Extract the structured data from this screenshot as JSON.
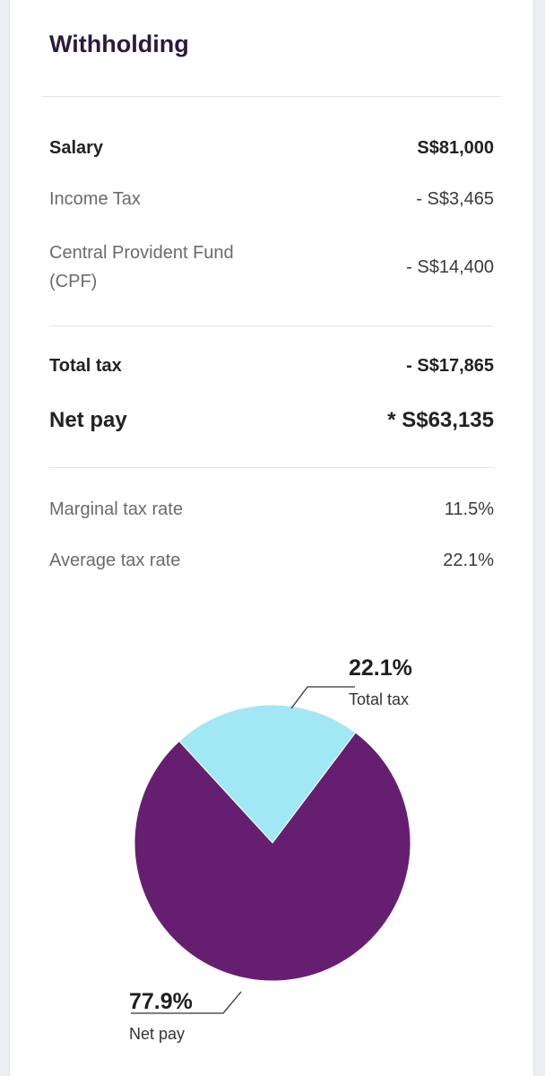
{
  "header": {
    "title": "Withholding"
  },
  "summary": {
    "salary_label": "Salary",
    "salary_value": "S$81,000",
    "income_tax_label": "Income Tax",
    "income_tax_value": "- S$3,465",
    "cpf_label_line1": "Central Provident Fund",
    "cpf_label_line2": "(CPF)",
    "cpf_value": "- S$14,400",
    "total_tax_label": "Total tax",
    "total_tax_value": "- S$17,865",
    "net_pay_label": "Net pay",
    "net_pay_value": "* S$63,135"
  },
  "rates": {
    "marginal_label": "Marginal tax rate",
    "marginal_value": "11.5%",
    "average_label": "Average tax rate",
    "average_value": "22.1%"
  },
  "colors": {
    "title": "#2c1a3d",
    "net_pay_slice": "#661f70",
    "total_tax_slice": "#a1e8f4"
  },
  "chart_data": {
    "type": "pie",
    "slices": [
      {
        "label": "Total tax",
        "value": 22.1,
        "display": "22.1%",
        "color": "#a1e8f4"
      },
      {
        "label": "Net pay",
        "value": 77.9,
        "display": "77.9%",
        "color": "#661f70"
      }
    ]
  }
}
